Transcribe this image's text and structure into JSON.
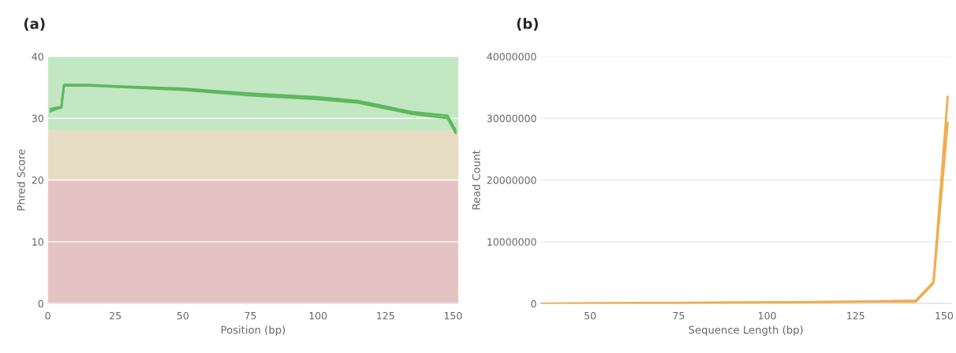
{
  "chart_data": [
    {
      "type": "line",
      "title": "(a)",
      "xlabel": "Position (bp)",
      "ylabel": "Phred Score",
      "xlim": [
        0,
        152
      ],
      "xticks": [
        0,
        25,
        50,
        75,
        100,
        125,
        150
      ],
      "ylim": [
        0,
        40
      ],
      "yticks": [
        0,
        10,
        20,
        30,
        40
      ],
      "grid": "y",
      "bands": [
        {
          "axis": "y",
          "from": 28,
          "to": 40,
          "color": "#c3e6c3"
        },
        {
          "axis": "y",
          "from": 20,
          "to": 28,
          "color": "#e6dcc3"
        },
        {
          "axis": "y",
          "from": 0,
          "to": 20,
          "color": "#e6c3c3"
        }
      ],
      "series": [
        {
          "color": "#5cb85c",
          "x": [
            1,
            3,
            5,
            6,
            15,
            25,
            50,
            75,
            100,
            115,
            125,
            135,
            148,
            151
          ],
          "values": [
            31.5,
            31.7,
            31.8,
            35.4,
            35.4,
            35.2,
            34.8,
            34.0,
            33.4,
            32.8,
            31.9,
            31.0,
            30.4,
            28.0
          ]
        },
        {
          "color": "#5cb85c",
          "x": [
            1,
            3,
            5,
            6,
            15,
            25,
            50,
            75,
            100,
            115,
            125,
            135,
            148,
            151
          ],
          "values": [
            31.1,
            31.5,
            31.7,
            35.3,
            35.3,
            35.1,
            34.6,
            33.7,
            33.1,
            32.5,
            31.6,
            30.7,
            30.0,
            27.6
          ]
        }
      ]
    },
    {
      "type": "line",
      "title": "(b)",
      "xlabel": "Sequence Length (bp)",
      "ylabel": "Read Count",
      "xlim": [
        36,
        152
      ],
      "xticks": [
        50,
        75,
        100,
        125,
        150
      ],
      "ylim": [
        0,
        40000000
      ],
      "yticks": [
        0,
        10000000,
        20000000,
        30000000,
        40000000
      ],
      "grid": "y",
      "series": [
        {
          "color": "#f0ad4e",
          "x": [
            36,
            75,
            100,
            125,
            142,
            147,
            151
          ],
          "values": [
            0,
            100000,
            200000,
            300000,
            500000,
            3500000,
            33500000
          ]
        },
        {
          "color": "#f0ad4e",
          "x": [
            36,
            75,
            100,
            125,
            142,
            147,
            151
          ],
          "values": [
            0,
            100000,
            200000,
            300000,
            300000,
            3300000,
            29300000
          ]
        }
      ]
    }
  ]
}
